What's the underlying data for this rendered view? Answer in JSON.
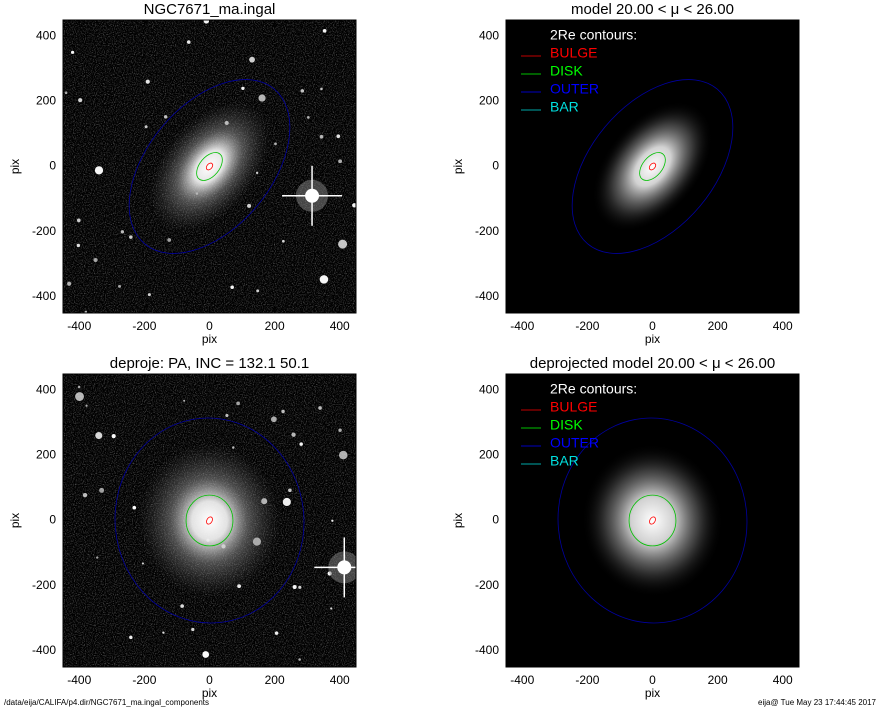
{
  "chart_data": [
    {
      "type": "image",
      "title": "NGC7671_ma.ingal",
      "xlabel": "pix",
      "ylabel": "pix",
      "xlim": [
        -450,
        450
      ],
      "ylim": [
        -450,
        450
      ],
      "xticks": [
        -400,
        -200,
        0,
        200,
        400
      ],
      "yticks": [
        -400,
        -200,
        0,
        200,
        400
      ],
      "background": "data",
      "contours": [
        {
          "color": "#ff0000",
          "a": 12,
          "b": 8,
          "angle": 50
        },
        {
          "color": "#00c000",
          "a": 50,
          "b": 30,
          "angle": 50
        },
        {
          "color": "#0000a0",
          "a": 310,
          "b": 190,
          "angle": 50
        }
      ]
    },
    {
      "type": "image",
      "title": "model  20.00 < μ <  26.00",
      "xlabel": "pix",
      "ylabel": "pix",
      "xlim": [
        -450,
        450
      ],
      "ylim": [
        -450,
        450
      ],
      "xticks": [
        -400,
        -200,
        0,
        200,
        400
      ],
      "yticks": [
        -400,
        -200,
        0,
        200,
        400
      ],
      "background": "model",
      "legend": {
        "title": "2Re contours:",
        "series": [
          {
            "name": "BULGE",
            "color": "#ff0000"
          },
          {
            "name": "DISK",
            "color": "#00ff00"
          },
          {
            "name": "OUTER",
            "color": "#0000ff"
          },
          {
            "name": "BAR",
            "color": "#00e0e0"
          }
        ]
      },
      "contours": [
        {
          "color": "#ff0000",
          "a": 12,
          "b": 8,
          "angle": 50
        },
        {
          "color": "#00c000",
          "a": 50,
          "b": 30,
          "angle": 50
        },
        {
          "color": "#0000a0",
          "a": 310,
          "b": 190,
          "angle": 50
        }
      ]
    },
    {
      "type": "image",
      "title": "deproje: PA, INC = 132.1    50.1",
      "xlabel": "pix",
      "ylabel": "pix",
      "xlim": [
        -450,
        450
      ],
      "ylim": [
        -450,
        450
      ],
      "xticks": [
        -400,
        -200,
        0,
        200,
        400
      ],
      "yticks": [
        -400,
        -200,
        0,
        200,
        400
      ],
      "background": "data",
      "contours": [
        {
          "color": "#ff0000",
          "a": 12,
          "b": 8,
          "angle": 60
        },
        {
          "color": "#00c000",
          "a": 78,
          "b": 72,
          "angle": 90
        },
        {
          "color": "#0000a0",
          "a": 315,
          "b": 290,
          "angle": 95
        }
      ]
    },
    {
      "type": "image",
      "title": "deprojected model  20.00 < μ <  26.00",
      "xlabel": "pix",
      "ylabel": "pix",
      "xlim": [
        -450,
        450
      ],
      "ylim": [
        -450,
        450
      ],
      "xticks": [
        -400,
        -200,
        0,
        200,
        400
      ],
      "yticks": [
        -400,
        -200,
        0,
        200,
        400
      ],
      "background": "model",
      "legend": {
        "title": "2Re contours:",
        "series": [
          {
            "name": "BULGE",
            "color": "#ff0000"
          },
          {
            "name": "DISK",
            "color": "#00ff00"
          },
          {
            "name": "OUTER",
            "color": "#0000ff"
          },
          {
            "name": "BAR",
            "color": "#00e0e0"
          }
        ]
      },
      "contours": [
        {
          "color": "#ff0000",
          "a": 12,
          "b": 8,
          "angle": 60
        },
        {
          "color": "#00c000",
          "a": 78,
          "b": 72,
          "angle": 90
        },
        {
          "color": "#0000a0",
          "a": 315,
          "b": 290,
          "angle": 95
        }
      ]
    }
  ],
  "footer": {
    "left": "/data/eija/CALIFA/p4.dir/NGC7671_ma.ingal_components",
    "right": "eija@  Tue May 23 17:44:45 2017"
  }
}
